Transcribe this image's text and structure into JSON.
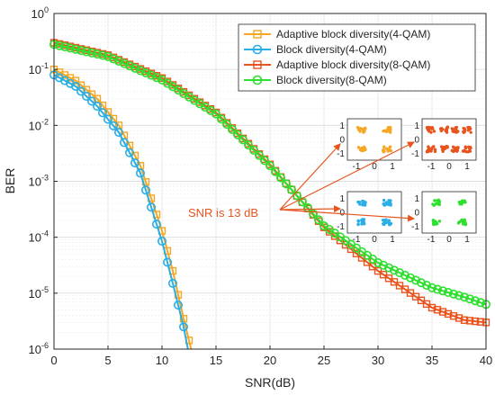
{
  "chart_data": {
    "type": "line",
    "xlabel": "SNR(dB)",
    "ylabel": "BER",
    "xlim": [
      0,
      40
    ],
    "ylim_log10": [
      -6,
      0
    ],
    "yscale": "log",
    "grid": true,
    "legend_placement": "top-right",
    "x_ticks": [
      "0",
      "5",
      "10",
      "15",
      "20",
      "25",
      "30",
      "35",
      "40"
    ],
    "y_ticks": [
      {
        "base": "10",
        "exp": "0"
      },
      {
        "base": "10",
        "exp": "-1"
      },
      {
        "base": "10",
        "exp": "-2"
      },
      {
        "base": "10",
        "exp": "-3"
      },
      {
        "base": "10",
        "exp": "-4"
      },
      {
        "base": "10",
        "exp": "-5"
      },
      {
        "base": "10",
        "exp": "-6"
      }
    ],
    "annotation": "SNR is 13 dB",
    "annotation_color": "#e8541e",
    "series": [
      {
        "name": "Adaptive block diversity(4-QAM)",
        "color": "#f5a623",
        "marker": "square",
        "x": [
          0,
          2,
          4,
          6,
          8,
          10,
          11,
          12,
          12.7
        ],
        "y": [
          0.1,
          0.063,
          0.03,
          0.01,
          0.0019,
          0.00013,
          2.5e-05,
          3.5e-06,
          1e-06
        ]
      },
      {
        "name": "Block diversity(4-QAM)",
        "color": "#29aee6",
        "marker": "circle",
        "x": [
          0,
          2,
          4,
          6,
          8,
          10,
          11,
          12,
          12.4
        ],
        "y": [
          0.08,
          0.05,
          0.022,
          0.0075,
          0.0014,
          8.5e-05,
          1.5e-05,
          2.5e-06,
          1e-06
        ]
      },
      {
        "name": "Adaptive block diversity(8-QAM)",
        "color": "#e8541e",
        "marker": "square",
        "x": [
          0,
          5,
          10,
          15,
          20,
          25,
          30,
          35,
          38,
          40
        ],
        "y": [
          0.3,
          0.18,
          0.07,
          0.017,
          0.002,
          0.00015,
          2.5e-05,
          5.5e-06,
          3.3e-06,
          3e-06
        ]
      },
      {
        "name": "Block diversity(8-QAM)",
        "color": "#2ee02e",
        "marker": "circle",
        "x": [
          0,
          5,
          10,
          15,
          20,
          25,
          30,
          35,
          38,
          40
        ],
        "y": [
          0.28,
          0.17,
          0.065,
          0.016,
          0.0019,
          0.00016,
          3.5e-05,
          1.25e-05,
          8.5e-06,
          6.3e-06
        ]
      }
    ],
    "insets": [
      {
        "color": "#f5a623",
        "xlim": [
          -1.5,
          1.5
        ],
        "ylim": [
          -1.5,
          1.5
        ],
        "x_ticks": [
          "-1",
          "0",
          "1"
        ],
        "y_ticks": [
          "1",
          "0",
          "-1"
        ],
        "centers": [
          [
            -0.7,
            0.7
          ],
          [
            0.7,
            0.7
          ],
          [
            -0.7,
            -0.7
          ],
          [
            0.7,
            -0.7
          ]
        ]
      },
      {
        "color": "#e8541e",
        "xlim": [
          -1.5,
          1.5
        ],
        "ylim": [
          -1.5,
          1.5
        ],
        "x_ticks": [
          "-1",
          "0",
          "1"
        ],
        "y_ticks": [
          "1",
          "0",
          "-1"
        ],
        "centers": [
          [
            -1.0,
            0.7
          ],
          [
            -0.3,
            0.7
          ],
          [
            0.3,
            0.7
          ],
          [
            1.0,
            0.7
          ],
          [
            -1.0,
            -0.7
          ],
          [
            -0.3,
            -0.7
          ],
          [
            0.3,
            -0.7
          ],
          [
            1.0,
            -0.7
          ]
        ]
      },
      {
        "color": "#29aee6",
        "xlim": [
          -1.5,
          1.5
        ],
        "ylim": [
          -1.5,
          1.5
        ],
        "x_ticks": [
          "-1",
          "0",
          "1"
        ],
        "y_ticks": [
          "1",
          "0",
          "-1"
        ],
        "centers": [
          [
            -0.7,
            0.7
          ],
          [
            0.7,
            0.7
          ],
          [
            -0.7,
            -0.7
          ],
          [
            0.7,
            -0.7
          ]
        ]
      },
      {
        "color": "#2ee02e",
        "xlim": [
          -1.5,
          1.5
        ],
        "ylim": [
          -1.5,
          1.5
        ],
        "x_ticks": [
          "-1",
          "0",
          "1"
        ],
        "y_ticks": [
          "1",
          "0",
          "-1"
        ],
        "centers": [
          [
            -0.7,
            0.7
          ],
          [
            0.7,
            0.7
          ],
          [
            -0.7,
            -0.7
          ],
          [
            0.7,
            -0.7
          ]
        ]
      }
    ]
  }
}
